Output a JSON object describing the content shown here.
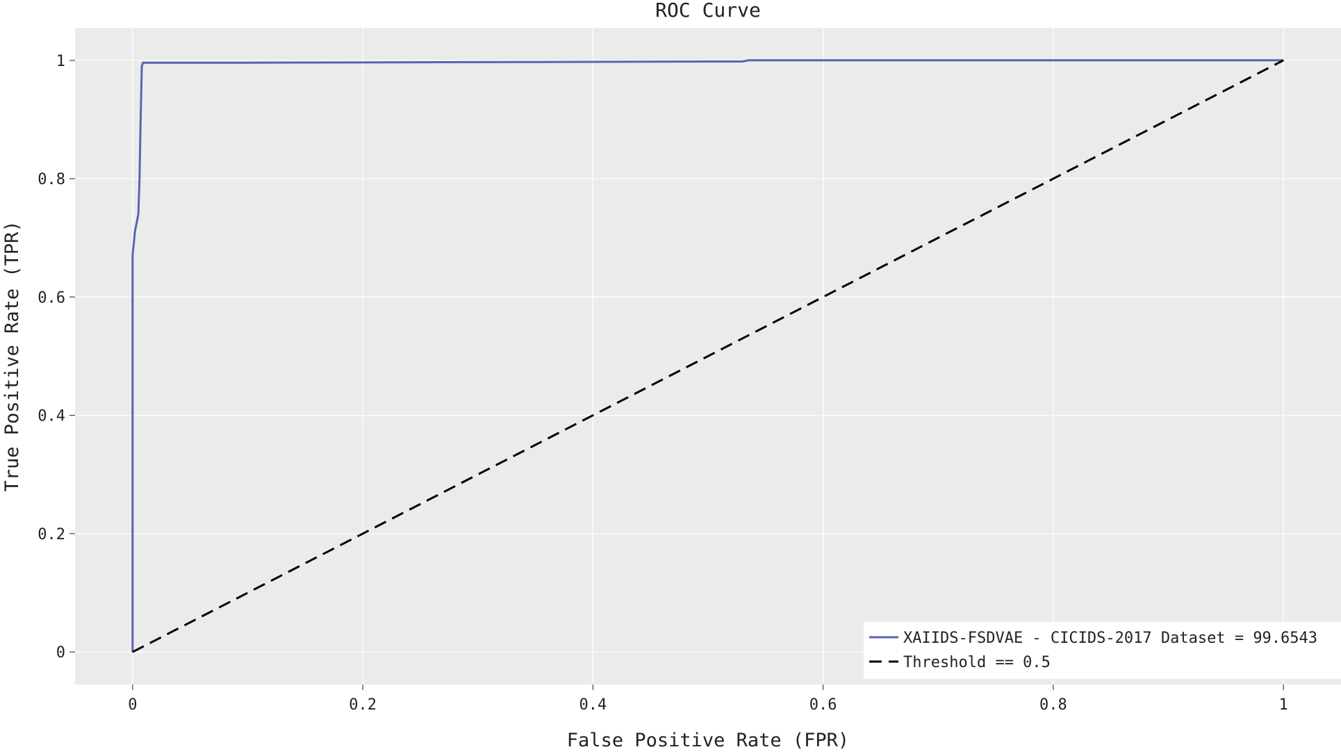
{
  "chart_data": {
    "type": "line",
    "title": "ROC Curve",
    "xlabel": "False Positive Rate (FPR)",
    "ylabel": "True Positive Rate (TPR)",
    "xlim": [
      -0.05,
      1.05
    ],
    "ylim": [
      -0.055,
      1.055
    ],
    "x_ticks": [
      {
        "value": 0,
        "label": "0"
      },
      {
        "value": 0.2,
        "label": "0.2"
      },
      {
        "value": 0.4,
        "label": "0.4"
      },
      {
        "value": 0.6,
        "label": "0.6"
      },
      {
        "value": 0.8,
        "label": "0.8"
      },
      {
        "value": 1,
        "label": "1"
      }
    ],
    "y_ticks": [
      {
        "value": 0,
        "label": "0"
      },
      {
        "value": 0.2,
        "label": "0.2"
      },
      {
        "value": 0.4,
        "label": "0.4"
      },
      {
        "value": 0.6,
        "label": "0.6"
      },
      {
        "value": 0.8,
        "label": "0.8"
      },
      {
        "value": 1,
        "label": "1"
      }
    ],
    "grid": true,
    "legend_position": "bottom-right",
    "series": [
      {
        "name": "XAIIDS-FSDVAE - CICIDS-2017 Dataset = 99.6543",
        "color": "#5b63b5",
        "dash": "solid",
        "x": [
          0,
          0,
          0.001,
          0.002,
          0.003,
          0.005,
          0.006,
          0.007,
          0.008,
          0.009,
          0.1,
          0.3,
          0.5,
          0.53,
          0.535,
          0.7,
          0.9,
          1
        ],
        "y": [
          0,
          0.67,
          0.69,
          0.71,
          0.72,
          0.74,
          0.8,
          0.9,
          0.99,
          0.996,
          0.996,
          0.997,
          0.998,
          0.998,
          1.0,
          1.0,
          1.0,
          1.0
        ]
      },
      {
        "name": "Threshold == 0.5",
        "color": "#000000",
        "dash": "dashed",
        "x": [
          0,
          1
        ],
        "y": [
          0,
          1
        ]
      }
    ],
    "colors": {
      "plot_background": "#ebebeb",
      "grid": "#ffffff",
      "text": "#222222"
    }
  }
}
